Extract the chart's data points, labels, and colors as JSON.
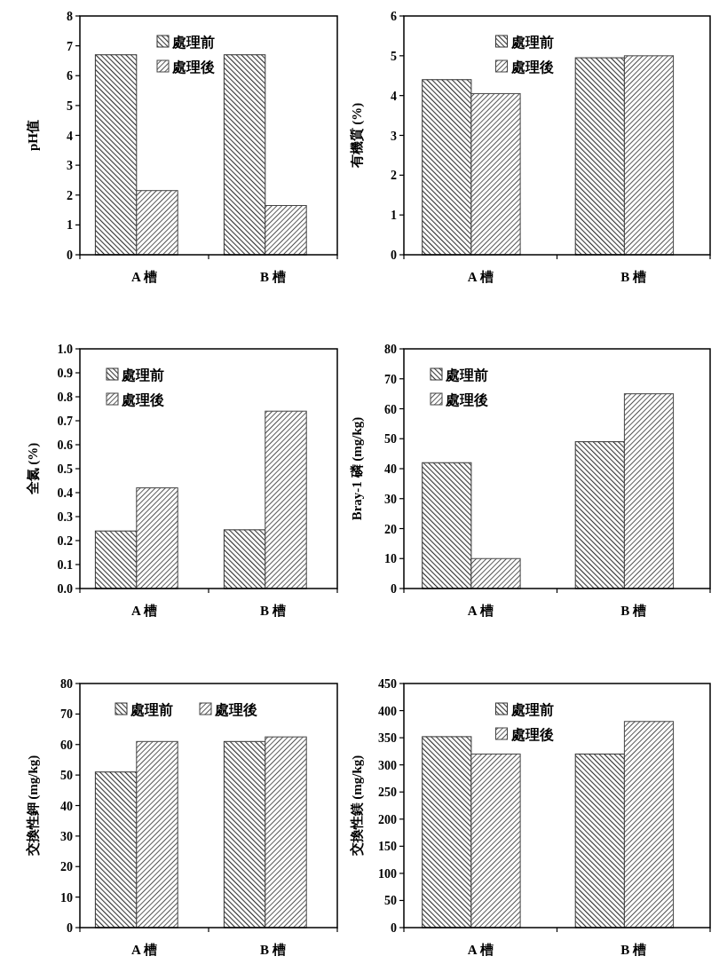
{
  "chart_data": [
    {
      "type": "bar",
      "categories": [
        "A 槽",
        "B 槽"
      ],
      "ylabel": "pH值",
      "ylim": [
        0,
        8
      ],
      "yticks": [
        0,
        1,
        2,
        3,
        4,
        5,
        6,
        7,
        8
      ],
      "legend": "top",
      "series": [
        {
          "name": "處理前",
          "color": "#333333",
          "values": [
            6.7,
            6.7
          ]
        },
        {
          "name": "處理後",
          "color": "#444444",
          "values": [
            2.15,
            1.65
          ]
        }
      ]
    },
    {
      "type": "bar",
      "categories": [
        "A 槽",
        "B 槽"
      ],
      "ylabel": "有機質 (%)",
      "ylim": [
        0,
        6
      ],
      "yticks": [
        0,
        1,
        2,
        3,
        4,
        5,
        6
      ],
      "legend": "top",
      "series": [
        {
          "name": "處理前",
          "color": "#333333",
          "values": [
            4.4,
            4.95
          ]
        },
        {
          "name": "處理後",
          "color": "#444444",
          "values": [
            4.05,
            5.0
          ]
        }
      ]
    },
    {
      "type": "bar",
      "categories": [
        "A 槽",
        "B 槽"
      ],
      "ylabel": "全氮 (%)",
      "ylim": [
        0,
        1
      ],
      "yticks": [
        {
          "value": 0,
          "label": "0.0"
        },
        0.1,
        0.2,
        0.3,
        0.4,
        0.5,
        0.6,
        0.7,
        0.8,
        0.9,
        {
          "value": 1,
          "label": "1.0"
        }
      ],
      "legend": "top left",
      "series": [
        {
          "name": "處理前",
          "color": "#333333",
          "values": [
            0.24,
            0.245
          ]
        },
        {
          "name": "處理後",
          "color": "#444444",
          "values": [
            0.42,
            0.74
          ]
        }
      ]
    },
    {
      "type": "bar",
      "categories": [
        "A 槽",
        "B 槽"
      ],
      "ylabel": "Bray-1 磷 (mg/kg)",
      "ylim": [
        0,
        80
      ],
      "yticks": [
        0,
        10,
        20,
        30,
        40,
        50,
        60,
        70,
        80
      ],
      "legend": "top left",
      "series": [
        {
          "name": "處理前",
          "color": "#333333",
          "values": [
            42,
            49
          ]
        },
        {
          "name": "處理後",
          "color": "#444444",
          "values": [
            10,
            65
          ]
        }
      ]
    },
    {
      "type": "bar",
      "categories": [
        "A 槽",
        "B 槽"
      ],
      "ylabel": "交換性鉀 (mg/kg)",
      "ylim": [
        0,
        80
      ],
      "yticks": [
        0,
        10,
        20,
        30,
        40,
        50,
        60,
        70,
        80
      ],
      "legend": "top",
      "series": [
        {
          "name": "處理前",
          "color": "#333333",
          "values": [
            51,
            61
          ]
        },
        {
          "name": "處理後",
          "color": "#444444",
          "values": [
            61,
            62.5
          ]
        }
      ]
    },
    {
      "type": "bar",
      "categories": [
        "A 槽",
        "B 槽"
      ],
      "ylabel": "交換性鎂 (mg/kg)",
      "ylim": [
        0,
        450
      ],
      "yticks": [
        0,
        50,
        100,
        150,
        200,
        250,
        300,
        350,
        400,
        450
      ],
      "legend": "top",
      "series": [
        {
          "name": "處理前",
          "color": "#333333",
          "values": [
            352,
            320
          ]
        },
        {
          "name": "處理後",
          "color": "#444444",
          "values": [
            320,
            380
          ]
        }
      ]
    }
  ]
}
